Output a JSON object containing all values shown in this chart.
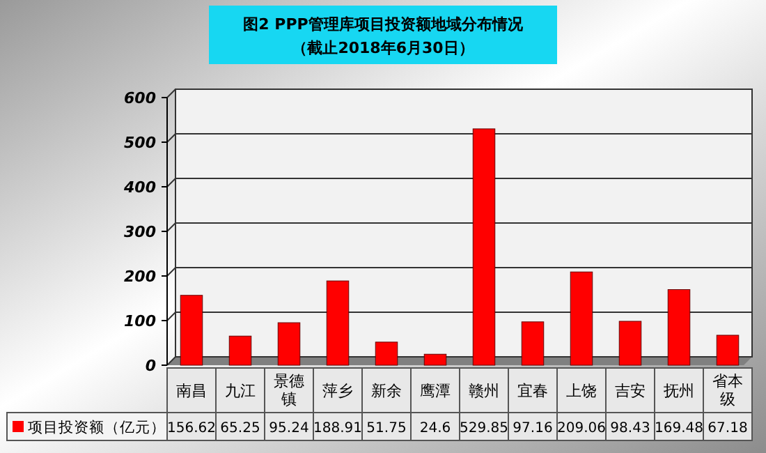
{
  "chart_data": {
    "type": "bar",
    "title": "图2 PPP管理库项目投资额地域分布情况",
    "subtitle": "（截止2018年6月30日）",
    "categories": [
      "南昌",
      "九江",
      "景德镇",
      "萍乡",
      "新余",
      "鹰潭",
      "赣州",
      "宜春",
      "上饶",
      "吉安",
      "抚州",
      "省本级"
    ],
    "series": [
      {
        "name": "项目投资额（亿元）",
        "color": "#ff0000",
        "values": [
          156.62,
          65.25,
          95.24,
          188.91,
          51.75,
          24.6,
          529.85,
          97.16,
          209.06,
          98.43,
          169.48,
          67.18
        ]
      }
    ],
    "ylim": [
      0,
      600
    ],
    "yticks": [
      0,
      100,
      200,
      300,
      400,
      500,
      600
    ],
    "grid": "y",
    "legend": "bottom",
    "data_labels": true
  }
}
